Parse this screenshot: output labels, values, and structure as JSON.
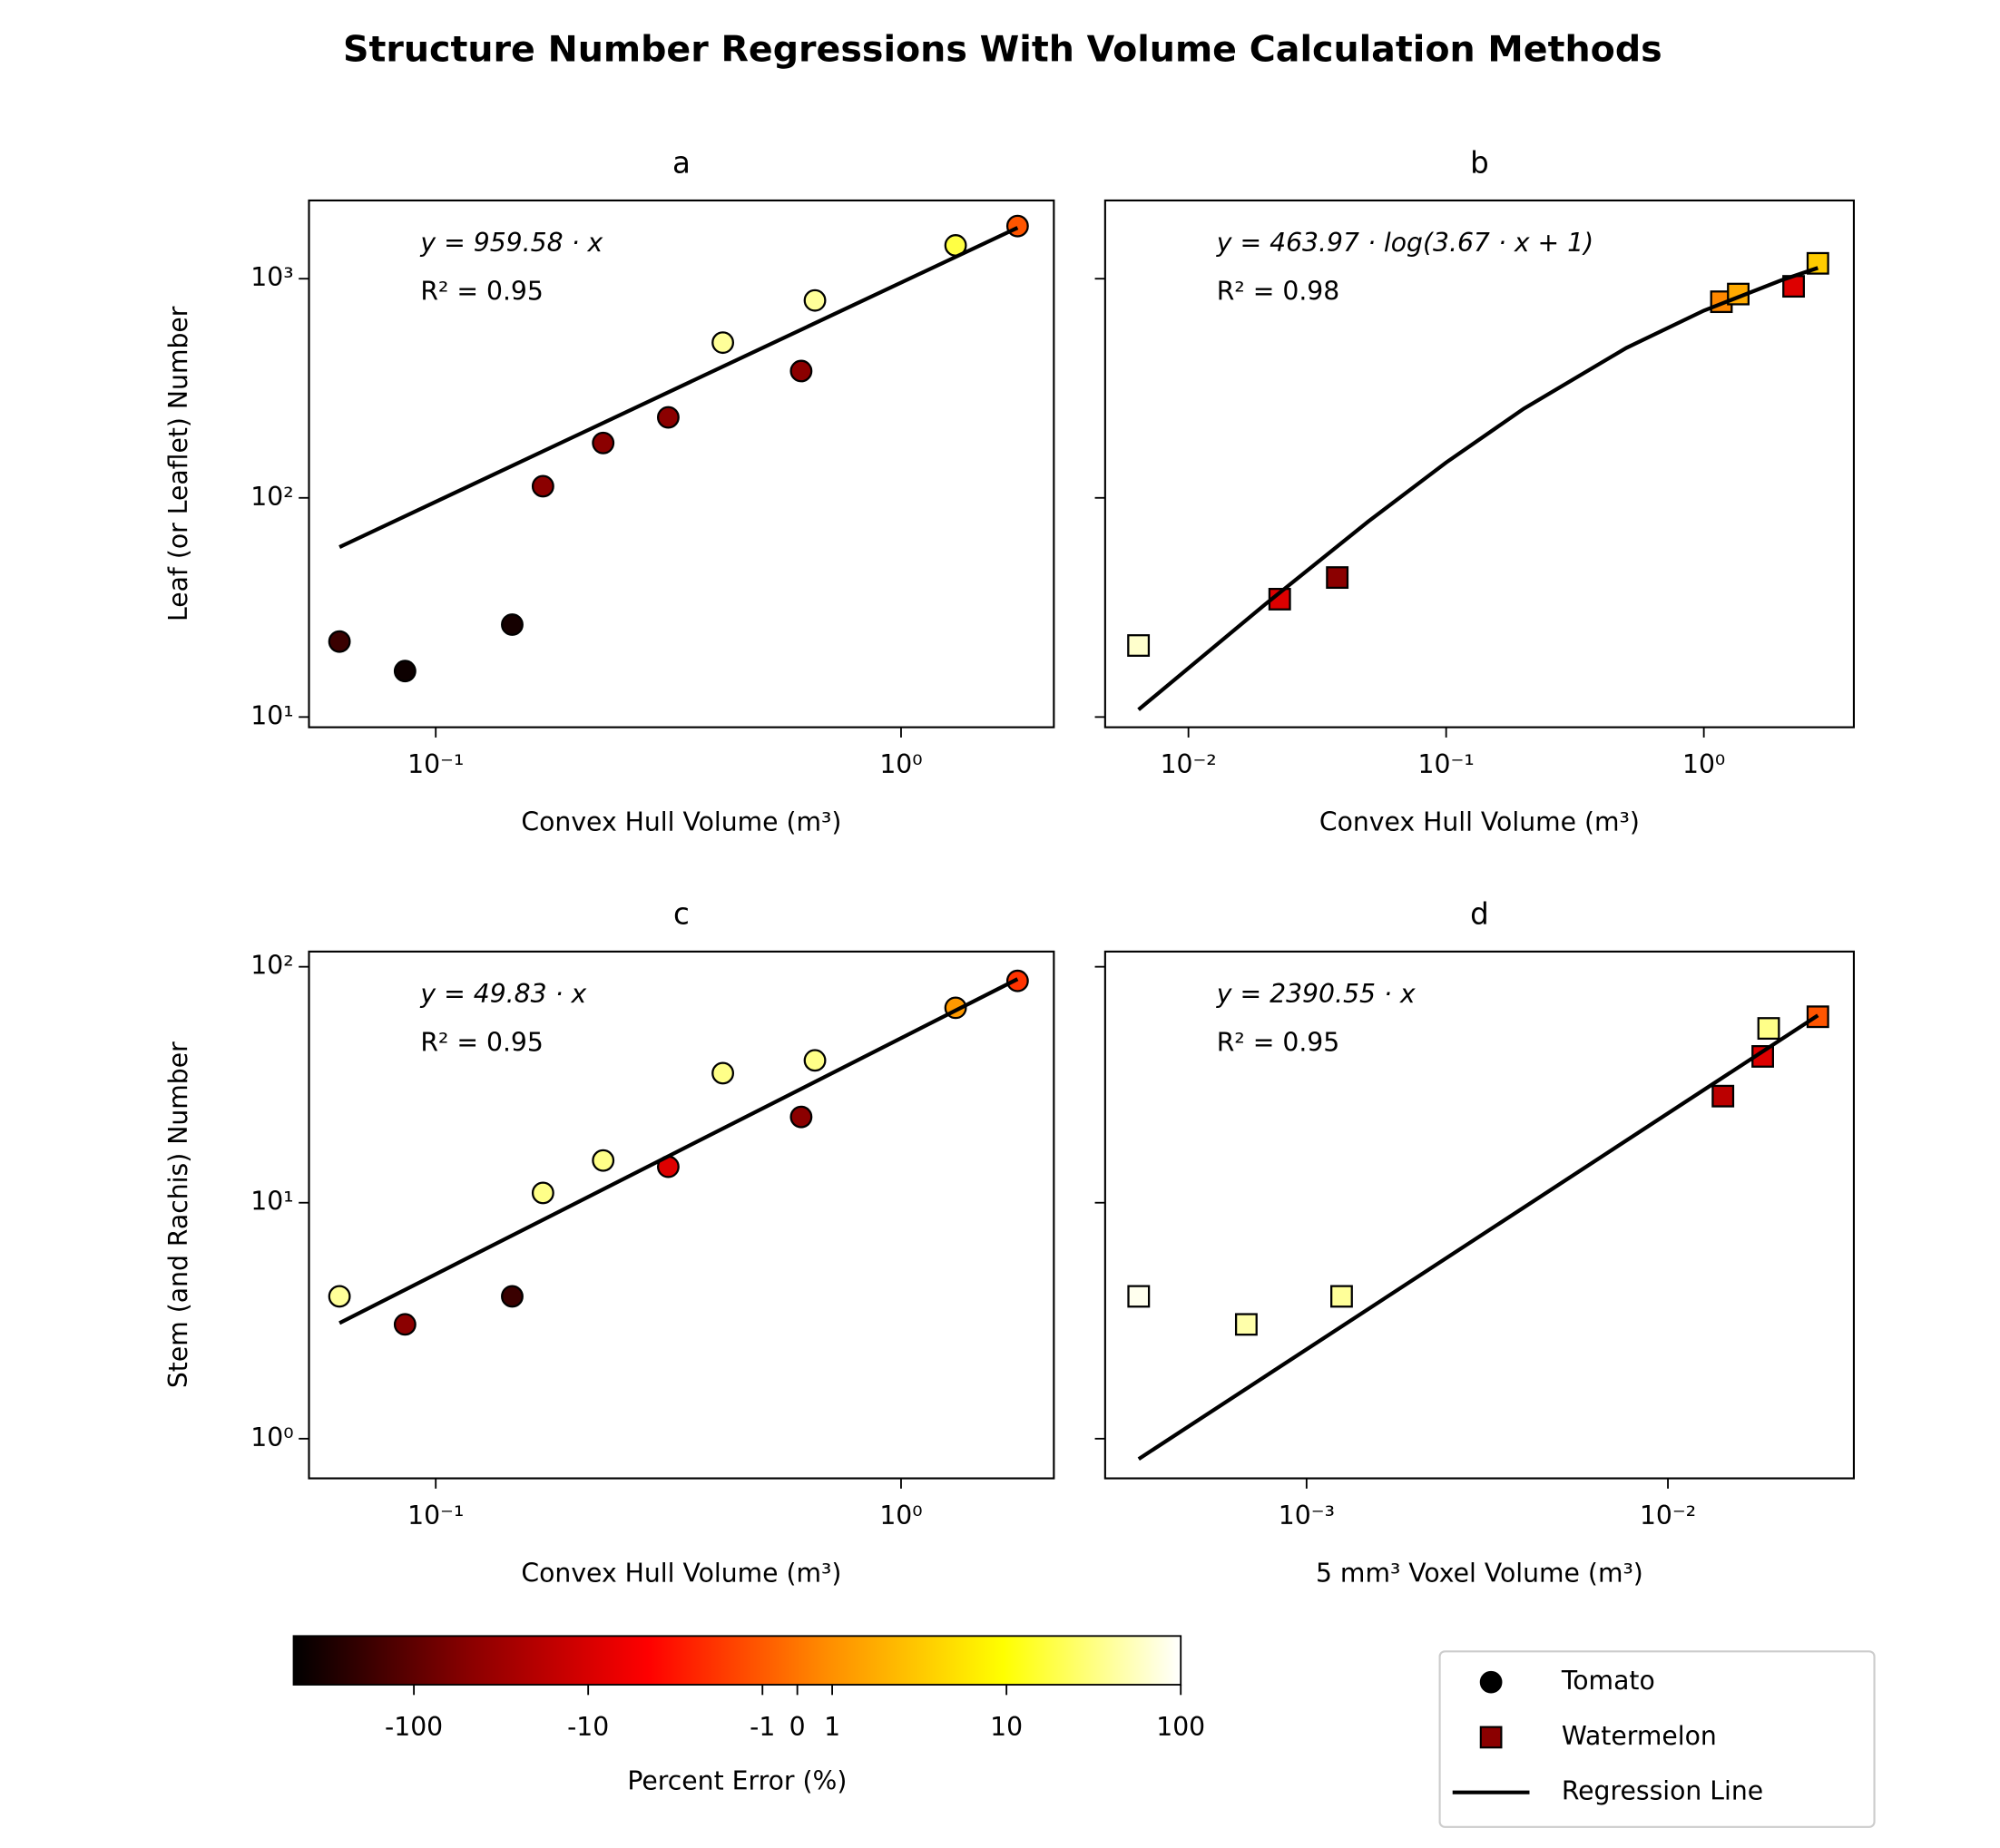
{
  "title": "Structure Number Regressions With Volume Calculation Methods",
  "chart_data": [
    {
      "type": "scatter",
      "title": "a",
      "xlabel": "Convex Hull Volume (m³)",
      "ylabel": "Leaf (or Leaflet) Number",
      "xscale": "log",
      "yscale": "log",
      "xlim": [
        0.0534,
        2.13
      ],
      "ylim": [
        8.98,
        2275
      ],
      "xticks": [
        {
          "value": 0.1,
          "label": "10⁻¹"
        },
        {
          "value": 1,
          "label": "10⁰"
        }
      ],
      "yticks": [
        {
          "value": 10,
          "label": "10¹"
        },
        {
          "value": 100,
          "label": "10²"
        },
        {
          "value": 1000,
          "label": "10³"
        }
      ],
      "equation": "y = 959.58 · x",
      "r2": "R² = 0.95",
      "series": [
        {
          "marker": "circle",
          "x": [
            0.0621,
            0.0859,
            0.146,
            0.17,
            0.229,
            0.316,
            0.414,
            0.61,
            0.653,
            1.31,
            1.78
          ],
          "values": [
            22.1,
            16.2,
            26.4,
            113,
            178,
            233,
            511,
            379,
            796,
            1419,
            1738
          ],
          "colors": [
            "#3a0000",
            "#0d0000",
            "#150000",
            "#8b0000",
            "#8b0000",
            "#8b0000",
            "#ffff99",
            "#8b0000",
            "#ffff99",
            "#ffff44",
            "#ff5500"
          ]
        },
        {
          "marker": "line",
          "color": "#000000",
          "x": [
            0.0621,
            1.78
          ],
          "values": [
            59.6,
            1708
          ]
        }
      ]
    },
    {
      "type": "scatter",
      "title": "b",
      "xlabel": "Convex Hull Volume (m³)",
      "xscale": "log",
      "yscale": "log",
      "xlim": [
        0.00475,
        3.82
      ],
      "ylim": [
        8.98,
        2275
      ],
      "xticks": [
        {
          "value": 0.01,
          "label": "10⁻²"
        },
        {
          "value": 0.1,
          "label": "10⁻¹"
        },
        {
          "value": 1,
          "label": "10⁰"
        }
      ],
      "yticks": [
        {
          "value": 10,
          "label": null
        },
        {
          "value": 100,
          "label": null
        },
        {
          "value": 1000,
          "label": null
        }
      ],
      "equation": "y = 463.97 · log(3.67 · x + 1)",
      "r2": "R² = 0.98",
      "series": [
        {
          "marker": "square",
          "x": [
            0.0064,
            0.0226,
            0.0378,
            1.17,
            1.36,
            2.23,
            2.77
          ],
          "values": [
            21.2,
            34.5,
            43.3,
            785,
            851,
            923,
            1175
          ],
          "colors": [
            "#ffffcc",
            "#dd0000",
            "#8b0000",
            "#ff8800",
            "#ffaa00",
            "#dd0000",
            "#ffcc00"
          ]
        },
        {
          "marker": "line",
          "color": "#000000",
          "x": [
            0.0064,
            0.01,
            0.02,
            0.05,
            0.1,
            0.2,
            0.5,
            1,
            2,
            2.77
          ],
          "values": [
            10.8,
            16.7,
            32.9,
            78.2,
            145,
            255,
            483,
            715,
            984,
            1120
          ]
        }
      ]
    },
    {
      "type": "scatter",
      "title": "c",
      "xlabel": "Convex Hull Volume (m³)",
      "ylabel": "Stem (and Rachis) Number",
      "xscale": "log",
      "yscale": "log",
      "xlim": [
        0.0534,
        2.13
      ],
      "ylim": [
        0.679,
        116
      ],
      "xticks": [
        {
          "value": 0.1,
          "label": "10⁻¹"
        },
        {
          "value": 1,
          "label": "10⁰"
        }
      ],
      "yticks": [
        {
          "value": 1,
          "label": "10⁰"
        },
        {
          "value": 10,
          "label": "10¹"
        },
        {
          "value": 100,
          "label": "10²"
        }
      ],
      "equation": "y = 49.83 · x",
      "r2": "R² = 0.95",
      "series": [
        {
          "marker": "circle",
          "x": [
            0.0621,
            0.0859,
            0.146,
            0.17,
            0.229,
            0.316,
            0.414,
            0.61,
            0.653,
            1.31,
            1.78
          ],
          "values": [
            4.01,
            3.05,
            4.01,
            11.0,
            15.1,
            14.2,
            35.4,
            23.1,
            40.1,
            67,
            87.1
          ],
          "colors": [
            "#ffff99",
            "#8b0000",
            "#3a0000",
            "#ffff88",
            "#ffff88",
            "#dd0000",
            "#ffff88",
            "#8b0000",
            "#ffff88",
            "#ff9900",
            "#ff3300"
          ]
        },
        {
          "marker": "line",
          "color": "#000000",
          "x": [
            0.0621,
            1.78
          ],
          "values": [
            3.09,
            88.7
          ]
        }
      ]
    },
    {
      "type": "scatter",
      "title": "d",
      "xlabel": "5 mm³ Voxel Volume (m³)",
      "xscale": "log",
      "yscale": "log",
      "xlim": [
        0.000277,
        0.0327
      ],
      "ylim": [
        0.679,
        116
      ],
      "xticks": [
        {
          "value": 0.001,
          "label": "10⁻³"
        },
        {
          "value": 0.01,
          "label": "10⁻²"
        }
      ],
      "yticks": [
        {
          "value": 1,
          "label": null
        },
        {
          "value": 10,
          "label": null
        },
        {
          "value": 100,
          "label": null
        }
      ],
      "equation": "y = 2390.55 · x",
      "r2": "R² = 0.95",
      "series": [
        {
          "marker": "square",
          "x": [
            0.000343,
            0.000681,
            0.00125,
            0.0142,
            0.0183,
            0.019,
            0.026
          ],
          "values": [
            4.01,
            3.05,
            4.01,
            28.3,
            41.7,
            54.8,
            61.4
          ],
          "colors": [
            "#ffffee",
            "#ffffaa",
            "#ffff99",
            "#bb0000",
            "#dd0000",
            "#ffff88",
            "#ff5500"
          ]
        },
        {
          "marker": "line",
          "color": "#000000",
          "x": [
            0.000343,
            0.026
          ],
          "values": [
            0.82,
            62.2
          ]
        }
      ]
    }
  ],
  "colorbar": {
    "label": "Percent Error (%)",
    "scale": "symlog",
    "lim": [
      -490,
      100
    ],
    "ticks": [
      -100,
      -10,
      -1,
      0,
      1,
      10,
      100
    ],
    "colors": [
      "#000000",
      "#8b0000",
      "#ff0000",
      "#ff8c00",
      "#ffff00",
      "#ffffff"
    ]
  },
  "legend": {
    "entries": [
      {
        "name": "Tomato",
        "marker": "circle",
        "color": "#000000"
      },
      {
        "name": "Watermelon",
        "marker": "square",
        "color": "#8b0000"
      },
      {
        "name": "Regression Line",
        "marker": "line",
        "color": "#000000"
      }
    ]
  }
}
